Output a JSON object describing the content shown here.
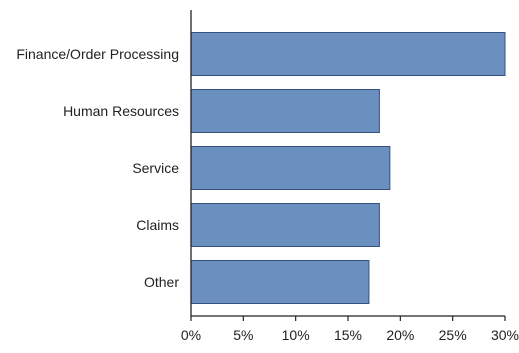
{
  "colors": {
    "bar_fill": "#6b8fbf",
    "bar_stroke": "#34527e",
    "axis": "#222222",
    "text": "#222222"
  },
  "chart_data": {
    "type": "bar",
    "orientation": "horizontal",
    "categories": [
      "Finance/Order Processing",
      "Human Resources",
      "Service",
      "Claims",
      "Other"
    ],
    "values": [
      30,
      18,
      19,
      18,
      17
    ],
    "xlim": [
      0,
      30
    ],
    "xticks": [
      0,
      5,
      10,
      15,
      20,
      25,
      30
    ],
    "tick_suffix": "%",
    "grid": false,
    "legend": "none"
  }
}
